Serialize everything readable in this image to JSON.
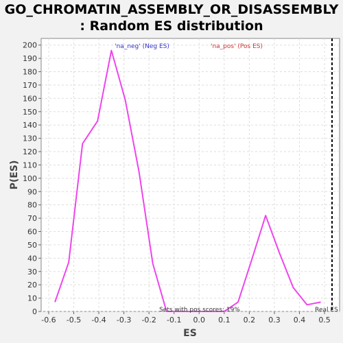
{
  "chart_data": {
    "type": "line",
    "title": "GO_CHROMATIN_ASSEMBLY_OR_DISASSEMBLY",
    "subtitle": ": Random ES distribution",
    "xlabel": "ES",
    "ylabel": "P(ES)",
    "xlim": [
      -0.63,
      0.56
    ],
    "ylim": [
      0,
      205
    ],
    "xticks": [
      "-0.6",
      "-0.5",
      "-0.4",
      "-0.3",
      "-0.2",
      "-0.1",
      "0.0",
      "0.1",
      "0.2",
      "0.3",
      "0.4",
      "0.5"
    ],
    "yticks": [
      "0",
      "10",
      "20",
      "30",
      "40",
      "50",
      "60",
      "70",
      "80",
      "90",
      "100",
      "110",
      "120",
      "130",
      "140",
      "150",
      "160",
      "170",
      "180",
      "190",
      "200"
    ],
    "grid": true,
    "series": [
      {
        "color": "#ee44ee",
        "x": [
          -0.575,
          -0.52,
          -0.465,
          -0.405,
          -0.35,
          -0.295,
          -0.24,
          -0.185,
          -0.13,
          0.1,
          0.155,
          0.21,
          0.265,
          0.32,
          0.375,
          0.43,
          0.485
        ],
        "y": [
          7,
          37,
          126,
          143,
          196,
          159,
          105,
          36,
          0,
          0,
          7,
          39,
          72,
          44,
          18,
          5,
          7
        ]
      }
    ],
    "real_es": 0.53,
    "real_es_label": "Real ES",
    "legend": {
      "neg": "'na_neg' (Neg ES)",
      "pos": "'na_pos' (Pos ES)",
      "neg_color": "#3333cc",
      "pos_color": "#cc3333"
    },
    "annotation": "Sets with pos scores: 19%"
  }
}
